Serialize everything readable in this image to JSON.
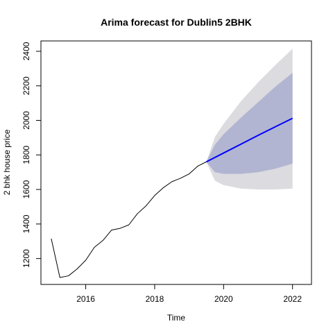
{
  "chart_data": {
    "type": "line",
    "title": "Arima forecast for Dublin5 2BHK",
    "xlabel": "Time",
    "ylabel": "2 bhk house price",
    "xlim": [
      2014.7,
      2022.55
    ],
    "ylim": [
      1050,
      2460
    ],
    "x_ticks": [
      2016,
      2018,
      2020,
      2022
    ],
    "y_ticks": [
      1200,
      1400,
      1600,
      1800,
      2000,
      2200,
      2400
    ],
    "x_tick_labels": [
      "2016",
      "2018",
      "2020",
      "2022"
    ],
    "y_tick_labels": [
      "1200",
      "1400",
      "1600",
      "1800",
      "2000",
      "2200",
      "2400"
    ],
    "grid": false,
    "legend": "none",
    "series": [
      {
        "role": "observed",
        "color": "#000000",
        "x": [
          2015.0,
          2015.25,
          2015.5,
          2015.75,
          2016.0,
          2016.25,
          2016.5,
          2016.75,
          2017.0,
          2017.25,
          2017.5,
          2017.75,
          2018.0,
          2018.25,
          2018.5,
          2018.75,
          2019.0,
          2019.25,
          2019.5
        ],
        "y": [
          1315,
          1090,
          1100,
          1140,
          1190,
          1265,
          1305,
          1365,
          1375,
          1395,
          1460,
          1505,
          1565,
          1610,
          1645,
          1665,
          1690,
          1735,
          1760
        ]
      },
      {
        "role": "forecast",
        "color": "#0000ff",
        "x": [
          2019.5,
          2020.0,
          2020.5,
          2021.0,
          2021.5,
          2022.0
        ],
        "y": [
          1760,
          1811,
          1862,
          1913,
          1963,
          2012
        ]
      }
    ],
    "intervals": [
      {
        "level": "95%",
        "color": "#dbdbe0",
        "x": [
          2019.5,
          2019.75,
          2020.0,
          2020.5,
          2021.0,
          2021.5,
          2022.0
        ],
        "lower": [
          1760,
          1650,
          1625,
          1605,
          1600,
          1600,
          1605
        ],
        "upper": [
          1760,
          1905,
          1980,
          2110,
          2220,
          2320,
          2415
        ]
      },
      {
        "level": "80%",
        "color": "#b1b5d1",
        "x": [
          2019.5,
          2019.75,
          2020.0,
          2020.5,
          2021.0,
          2021.5,
          2022.0
        ],
        "lower": [
          1760,
          1700,
          1690,
          1690,
          1700,
          1720,
          1750
        ],
        "upper": [
          1760,
          1860,
          1920,
          2015,
          2105,
          2195,
          2275
        ]
      }
    ]
  }
}
